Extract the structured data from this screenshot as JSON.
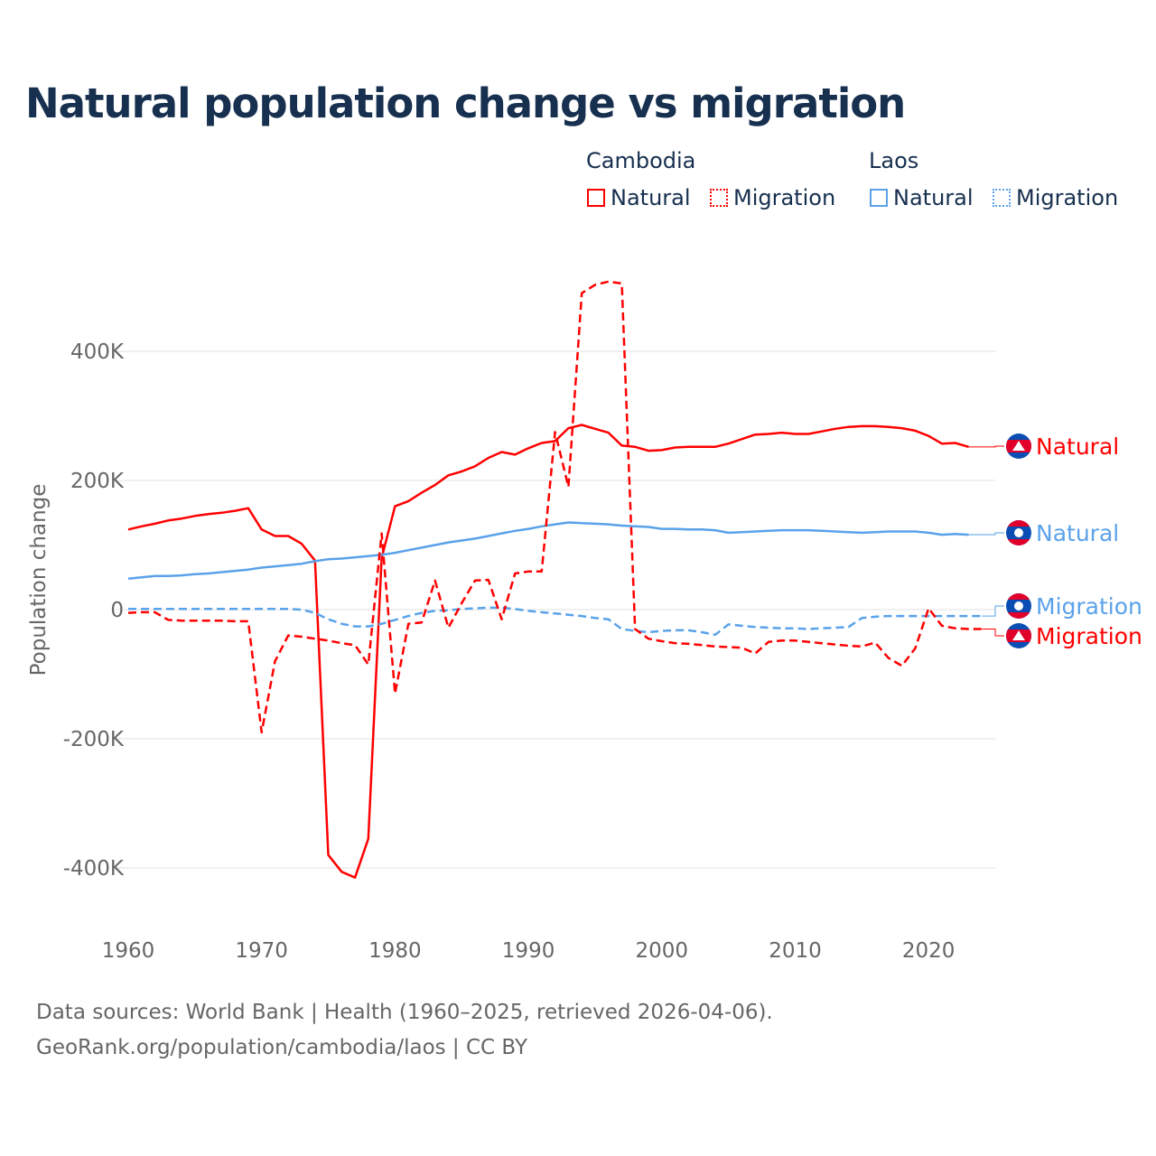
{
  "title": "Natural population change vs migration",
  "legend": {
    "groups": [
      {
        "name": "Cambodia",
        "items": [
          "Natural",
          "Migration"
        ]
      },
      {
        "name": "Laos",
        "items": [
          "Natural",
          "Migration"
        ]
      }
    ]
  },
  "footer": {
    "line1": "Data sources: World Bank | Health (1960–2025, retrieved 2026-04-06).",
    "line2": "GeoRank.org/population/cambodia/laos | CC BY"
  },
  "colors": {
    "cambodia": "#ff0000",
    "laos": "#5aa2ea",
    "text": "#17304f"
  },
  "chart_data": {
    "type": "line",
    "title": "Natural population change vs migration",
    "xlabel": "",
    "ylabel": "Population change",
    "xlim": [
      1960,
      2025
    ],
    "ylim": [
      -500000,
      520000
    ],
    "xticks": [
      1960,
      1970,
      1980,
      1990,
      2000,
      2010,
      2020
    ],
    "xtick_labels": [
      "1960",
      "1970",
      "1980",
      "1990",
      "2000",
      "2010",
      "2020"
    ],
    "yticks": [
      400000,
      200000,
      0,
      -200000,
      -400000
    ],
    "ytick_labels": [
      "400K",
      "200K",
      "0",
      "-200K",
      "-400K"
    ],
    "grid": "horizontal",
    "legend_position": "top-right",
    "series": [
      {
        "name": "Cambodia Natural",
        "end_label": "Natural",
        "country": "cambodia",
        "dashed": false,
        "start": 1960,
        "values": [
          124,
          129,
          133,
          138,
          141,
          145,
          148,
          150,
          153,
          157,
          124,
          114,
          114,
          102,
          76,
          -380,
          -406,
          -415,
          -355,
          80,
          160,
          168,
          181,
          193,
          208,
          214,
          222,
          235,
          244,
          240,
          250,
          258,
          261,
          281,
          286,
          280,
          274,
          254,
          252,
          246,
          247,
          251,
          252,
          252,
          252,
          257,
          264,
          271,
          272,
          274,
          272,
          272,
          276,
          280,
          283,
          284,
          284,
          283,
          281,
          277,
          269,
          257,
          258,
          252
        ]
      },
      {
        "name": "Laos Natural",
        "end_label": "Natural",
        "country": "laos",
        "dashed": false,
        "start": 1960,
        "values": [
          48,
          50,
          52,
          52,
          53,
          55,
          56,
          58,
          60,
          62,
          65,
          67,
          69,
          71,
          75,
          78,
          79,
          81,
          83,
          85,
          88,
          92,
          96,
          100,
          104,
          107,
          110,
          114,
          118,
          122,
          125,
          129,
          132,
          135,
          134,
          133,
          132,
          130,
          129,
          128,
          125,
          125,
          124,
          124,
          123,
          119,
          120,
          121,
          122,
          123,
          123,
          123,
          122,
          121,
          120,
          119,
          120,
          121,
          121,
          121,
          119,
          116,
          117,
          116
        ]
      },
      {
        "name": "Laos Migration",
        "end_label": "Migration",
        "country": "laos",
        "dashed": true,
        "start": 1960,
        "values": [
          1,
          1,
          1,
          1,
          1,
          1,
          1,
          1,
          1,
          1,
          1,
          1,
          1,
          0,
          -5,
          -15,
          -22,
          -26,
          -26,
          -22,
          -16,
          -10,
          -5,
          -2,
          -1,
          1,
          2,
          3,
          3,
          1,
          -2,
          -4,
          -6,
          -8,
          -10,
          -13,
          -15,
          -30,
          -33,
          -35,
          -33,
          -32,
          -32,
          -35,
          -39,
          -23,
          -25,
          -27,
          -28,
          -29,
          -29,
          -30,
          -29,
          -28,
          -27,
          -13,
          -11,
          -10,
          -10,
          -10,
          -10,
          -10,
          -10,
          -10,
          -10
        ]
      },
      {
        "name": "Cambodia Migration",
        "end_label": "Migration",
        "country": "cambodia",
        "dashed": true,
        "start": 1960,
        "values": [
          -5,
          -4,
          -4,
          -16,
          -17,
          -17,
          -17,
          -17,
          -18,
          -18,
          -190,
          -80,
          -40,
          -42,
          -45,
          -48,
          -52,
          -55,
          -85,
          118,
          -130,
          -22,
          -20,
          45,
          -28,
          10,
          45,
          46,
          -15,
          56,
          59,
          59,
          275,
          190,
          490,
          503,
          508,
          505,
          -30,
          -45,
          -49,
          -52,
          -53,
          -55,
          -57,
          -58,
          -59,
          -68,
          -50,
          -48,
          -48,
          -50,
          -52,
          -54,
          -56,
          -57,
          -51,
          -75,
          -87,
          -60,
          2,
          -25,
          -29,
          -30,
          -30
        ]
      }
    ],
    "units": "thousands"
  }
}
